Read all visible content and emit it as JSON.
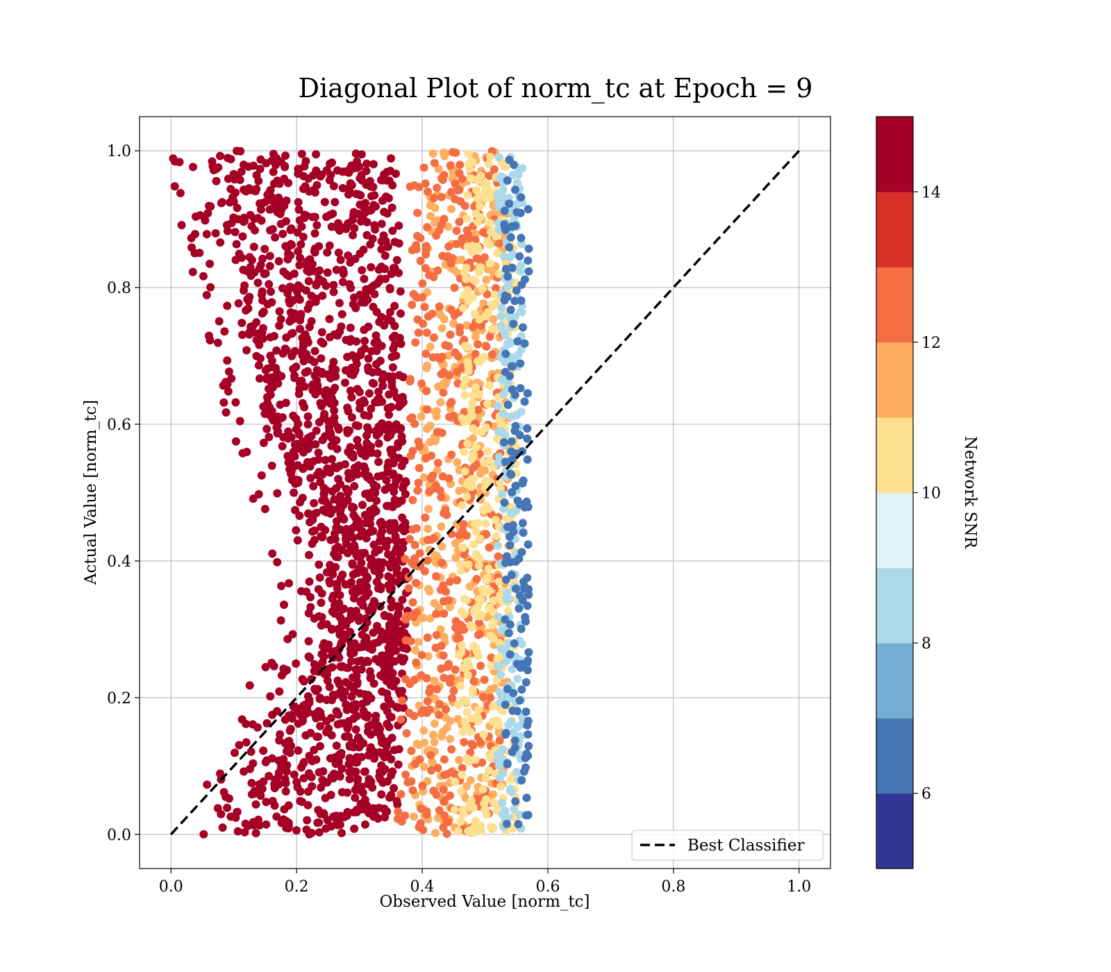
{
  "chart_data": {
    "type": "scatter",
    "title": "Diagonal Plot of norm_tc at Epoch = 9",
    "xlabel": "Observed Value [norm_tc]",
    "ylabel": "Actual Value [norm_tc]",
    "xlim": [
      -0.05,
      1.05
    ],
    "ylim": [
      -0.05,
      1.05
    ],
    "x_ticks": [
      "0.0",
      "0.2",
      "0.4",
      "0.6",
      "0.8",
      "1.0"
    ],
    "y_ticks": [
      "0.0",
      "0.2",
      "0.4",
      "0.6",
      "0.8",
      "1.0"
    ],
    "grid": true,
    "reference_line": {
      "name": "Best Classifier",
      "x": [
        0.0,
        1.0
      ],
      "y": [
        0.0,
        1.0
      ],
      "style": "dashed",
      "color": "#000000"
    },
    "legend": {
      "placement": "lower-right",
      "entries": [
        "Best Classifier"
      ]
    },
    "colorbar": {
      "label": "Network SNR",
      "min": 5,
      "max": 15,
      "ticks": [
        "6",
        "8",
        "10",
        "12",
        "14"
      ],
      "colors": [
        "#313695",
        "#4575b4",
        "#74add1",
        "#abd9e9",
        "#e0f3f8",
        "#fee090",
        "#fdae61",
        "#f46d43",
        "#d73027",
        "#a50026"
      ]
    },
    "point_bands": [
      {
        "snr": 14.5,
        "y_range": [
          0.0,
          1.0
        ],
        "x_band": [
          [
            0.1,
            0.36
          ],
          [
            0.26,
            0.38
          ],
          [
            0.14,
            0.37
          ],
          [
            0.06,
            0.36
          ]
        ]
      },
      {
        "snr": 11.5,
        "y_range": [
          0.0,
          1.0
        ],
        "x_band": [
          [
            0.38,
            0.53
          ],
          [
            0.39,
            0.54
          ],
          [
            0.4,
            0.54
          ],
          [
            0.41,
            0.54
          ]
        ]
      },
      {
        "snr": 12.5,
        "y_range": [
          0.0,
          1.0
        ],
        "x_band": [
          [
            0.36,
            0.52
          ],
          [
            0.37,
            0.53
          ],
          [
            0.38,
            0.53
          ],
          [
            0.38,
            0.52
          ]
        ]
      },
      {
        "snr": 10.5,
        "y_range": [
          0.0,
          1.0
        ],
        "x_band": [
          [
            0.45,
            0.55
          ],
          [
            0.46,
            0.55
          ],
          [
            0.46,
            0.55
          ],
          [
            0.47,
            0.55
          ]
        ]
      },
      {
        "snr": 8.5,
        "y_range": [
          0.0,
          1.0
        ],
        "x_band": [
          [
            0.52,
            0.56
          ],
          [
            0.52,
            0.56
          ],
          [
            0.52,
            0.56
          ],
          [
            0.52,
            0.56
          ]
        ]
      },
      {
        "snr": 6.0,
        "y_range": [
          0.0,
          1.0
        ],
        "x_band": [
          [
            0.53,
            0.57
          ],
          [
            0.53,
            0.57
          ],
          [
            0.53,
            0.57
          ],
          [
            0.53,
            0.57
          ]
        ]
      }
    ]
  }
}
